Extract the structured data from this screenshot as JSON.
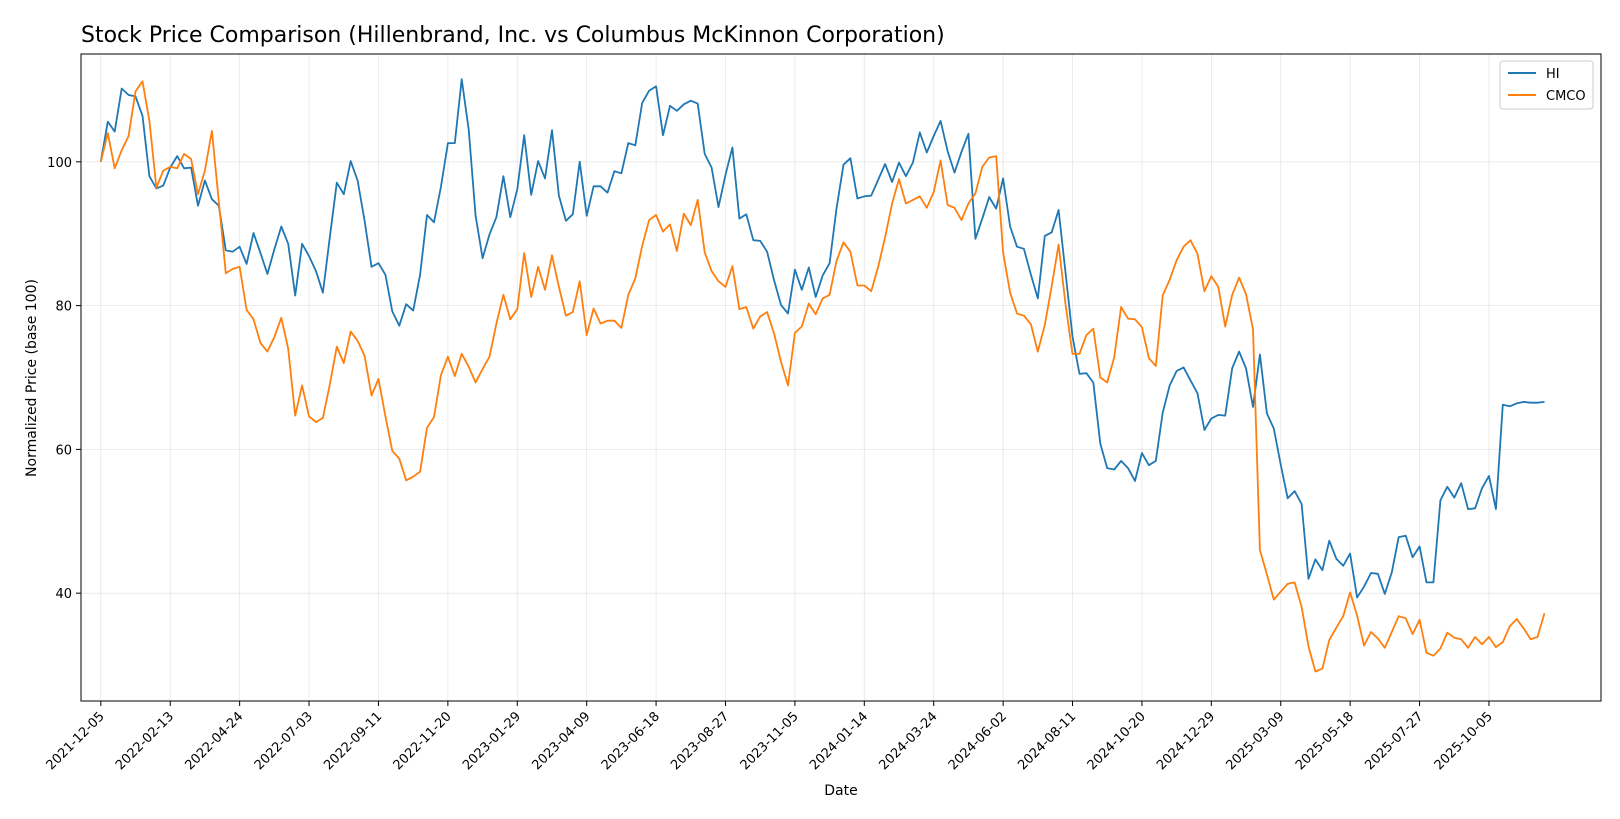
{
  "chart_data": {
    "type": "line",
    "title": "Stock Price Comparison (Hillenbrand, Inc. vs Columbus McKinnon Corporation)",
    "xlabel": "Date",
    "ylabel": "Normalized Price (base 100)",
    "ylim": [
      25,
      115
    ],
    "xlim": [
      "2021-11-15",
      "2026-01-26"
    ],
    "yticks": [
      40,
      60,
      80,
      100
    ],
    "xticks": [
      "2021-12-05",
      "2022-02-13",
      "2022-04-24",
      "2022-07-03",
      "2022-09-11",
      "2022-11-20",
      "2023-01-29",
      "2023-04-09",
      "2023-06-18",
      "2023-08-27",
      "2023-11-05",
      "2024-01-14",
      "2024-03-24",
      "2024-06-02",
      "2024-08-11",
      "2024-10-20",
      "2024-12-29",
      "2025-03-09",
      "2025-05-18",
      "2025-07-27",
      "2025-10-05"
    ],
    "grid": true,
    "legend": "top-right",
    "series_x_start": "2021-12-05",
    "series_x_step_days": 7,
    "series": [
      {
        "name": "HI",
        "color": "#1f77b4",
        "values": [
          100,
          105.6,
          104.2,
          110.2,
          109.3,
          109.1,
          106.4,
          98,
          96.3,
          96.7,
          99.2,
          100.8,
          99.1,
          99.2,
          93.9,
          97.4,
          94.8,
          93.9,
          87.7,
          87.5,
          88.2,
          85.8,
          90.1,
          87.3,
          84.4,
          87.8,
          91,
          88.6,
          81.4,
          88.6,
          86.9,
          84.8,
          81.8,
          89.6,
          97.1,
          95.5,
          100.1,
          97.4,
          91.8,
          85.4,
          85.9,
          84.3,
          79.2,
          77.2,
          80.2,
          79.3,
          84.3,
          92.6,
          91.6,
          96.5,
          102.6,
          102.6,
          111.5,
          104.5,
          92.5,
          86.6,
          89.9,
          92.3,
          98,
          92.3,
          96.2,
          103.7,
          95.4,
          100.1,
          97.7,
          104.4,
          95.3,
          91.8,
          92.7,
          100,
          92.5,
          96.6,
          96.6,
          95.7,
          98.7,
          98.4,
          102.6,
          102.3,
          108.2,
          109.9,
          110.5,
          103.7,
          107.8,
          107.1,
          108,
          108.5,
          108.1,
          101.1,
          99.2,
          93.7,
          98.2,
          102,
          92.1,
          92.7,
          89.1,
          89,
          87.5,
          83.5,
          80.1,
          78.9,
          85,
          82.2,
          85.3,
          81.2,
          84.2,
          85.9,
          93.5,
          99.6,
          100.5,
          94.9,
          95.2,
          95.3,
          97.5,
          99.7,
          97.2,
          99.9,
          98,
          99.9,
          104.1,
          101.3,
          103.6,
          105.7,
          101.5,
          98.5,
          101.4,
          103.9,
          89.3,
          92.1,
          95.1,
          93.5,
          97.7,
          91,
          88.2,
          87.9,
          84.3,
          81,
          89.7,
          90.2,
          93.3,
          84.5,
          75.7,
          70.5,
          70.6,
          69.3,
          60.8,
          57.4,
          57.2,
          58.4,
          57.4,
          55.6,
          59.5,
          57.8,
          58.4,
          65.1,
          68.9,
          70.9,
          71.4,
          69.6,
          67.8,
          62.7,
          64.3,
          64.8,
          64.7,
          71.3,
          73.6,
          71.3,
          65.9,
          73.2,
          65,
          62.9,
          57.9,
          53.2,
          54.2,
          52.4,
          42,
          44.7,
          43.2,
          47.3,
          44.8,
          43.8,
          45.5,
          39.4,
          40.9,
          42.8,
          42.7,
          39.9,
          42.9,
          47.8,
          48,
          45,
          46.5,
          41.5,
          41.5,
          52.9,
          54.8,
          53.3,
          55.3,
          51.7,
          51.8,
          54.6,
          56.3,
          51.7,
          66.2,
          66,
          66.4,
          66.6,
          66.5,
          66.5,
          66.6
        ]
      },
      {
        "name": "CMCO",
        "color": "#ff7f0e",
        "values": [
          100,
          104,
          99.1,
          101.6,
          103.6,
          109.8,
          111.2,
          105.7,
          96.4,
          98.8,
          99.3,
          99.1,
          101.1,
          100.4,
          95.5,
          98.8,
          104.3,
          94.5,
          84.5,
          85.1,
          85.4,
          79.4,
          78.1,
          74.8,
          73.6,
          75.6,
          78.3,
          74,
          64.7,
          68.9,
          64.6,
          63.8,
          64.4,
          69.1,
          74.3,
          72,
          76.4,
          75.1,
          73,
          67.5,
          69.8,
          64.6,
          59.8,
          58.7,
          55.7,
          56.2,
          56.9,
          63,
          64.5,
          70.3,
          72.9,
          70.2,
          73.3,
          71.5,
          69.3,
          71.2,
          72.9,
          77.5,
          81.5,
          78.1,
          79.5,
          87.3,
          81.2,
          85.4,
          82.2,
          87,
          82.6,
          78.6,
          79.1,
          83.4,
          75.9,
          79.6,
          77.5,
          77.9,
          77.9,
          76.9,
          81.5,
          83.8,
          88.3,
          91.9,
          92.6,
          90.3,
          91.3,
          87.6,
          92.8,
          91.2,
          94.7,
          87.4,
          84.8,
          83.4,
          82.6,
          85.5,
          79.5,
          79.8,
          76.8,
          78.5,
          79.1,
          76.1,
          72.2,
          68.9,
          76.2,
          77.1,
          80.3,
          78.8,
          81,
          81.5,
          86.2,
          88.8,
          87.5,
          82.8,
          82.8,
          82,
          85.4,
          89.5,
          94.2,
          97.6,
          94.2,
          94.7,
          95.2,
          93.6,
          95.8,
          100.2,
          94,
          93.6,
          91.9,
          94.2,
          95.6,
          99.3,
          100.6,
          100.8,
          87.4,
          81.8,
          78.9,
          78.6,
          77.4,
          73.6,
          77.3,
          82.7,
          88.5,
          80.1,
          73.3,
          73.3,
          75.9,
          76.8,
          70,
          69.3,
          72.8,
          79.8,
          78.2,
          78.1,
          77,
          72.7,
          71.6,
          81.4,
          83.6,
          86.3,
          88.2,
          89.1,
          87.2,
          82,
          84.1,
          82.6,
          77.1,
          81.5,
          83.9,
          81.6,
          76.7,
          46,
          42.6,
          39.1,
          40.2,
          41.3,
          41.5,
          38.1,
          32.6,
          29.1,
          29.5,
          33.5,
          35.2,
          36.8,
          40.1,
          36.9,
          32.7,
          34.6,
          33.7,
          32.4,
          34.6,
          36.8,
          36.5,
          34.3,
          36.3,
          31.7,
          31.3,
          32.3,
          34.5,
          33.8,
          33.6,
          32.4,
          33.9,
          32.9,
          33.9,
          32.5,
          33.2,
          35.4,
          36.4,
          35.1,
          33.6,
          33.9,
          37.2
        ]
      }
    ]
  }
}
